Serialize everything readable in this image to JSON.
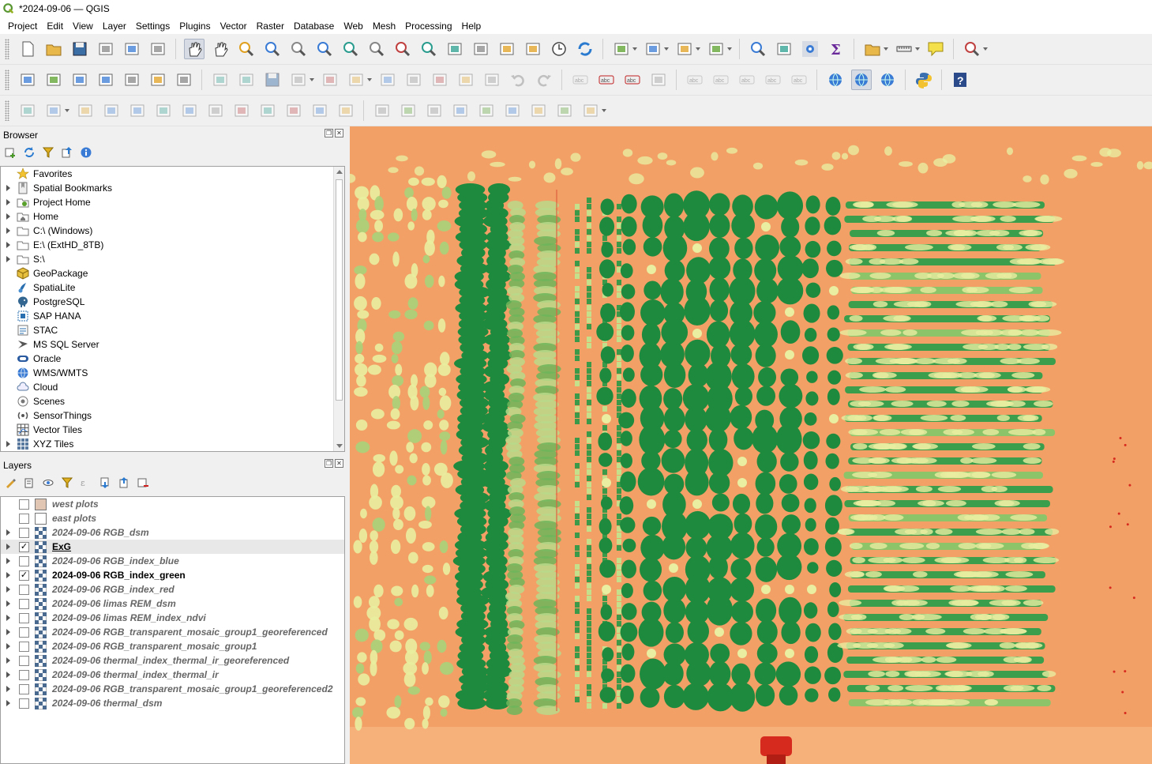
{
  "window": {
    "title": "*2024-09-06 — QGIS"
  },
  "menu": [
    "Project",
    "Edit",
    "View",
    "Layer",
    "Settings",
    "Plugins",
    "Vector",
    "Raster",
    "Database",
    "Web",
    "Mesh",
    "Processing",
    "Help"
  ],
  "browser": {
    "title": "Browser",
    "items": [
      {
        "label": "Favorites",
        "icon": "star-icon",
        "expandable": false
      },
      {
        "label": "Spatial Bookmarks",
        "icon": "bookmarks-icon",
        "expandable": true
      },
      {
        "label": "Project Home",
        "icon": "project-home-icon",
        "expandable": true
      },
      {
        "label": "Home",
        "icon": "home-icon",
        "expandable": true
      },
      {
        "label": "C:\\ (Windows)",
        "icon": "folder-icon",
        "expandable": true
      },
      {
        "label": "E:\\ (ExtHD_8TB)",
        "icon": "folder-icon",
        "expandable": true
      },
      {
        "label": "S:\\",
        "icon": "folder-icon",
        "expandable": true
      },
      {
        "label": "GeoPackage",
        "icon": "geopackage-icon",
        "expandable": false
      },
      {
        "label": "SpatiaLite",
        "icon": "spatialite-icon",
        "expandable": false
      },
      {
        "label": "PostgreSQL",
        "icon": "postgresql-icon",
        "expandable": false
      },
      {
        "label": "SAP HANA",
        "icon": "sap-hana-icon",
        "expandable": false
      },
      {
        "label": "STAC",
        "icon": "stac-icon",
        "expandable": false
      },
      {
        "label": "MS SQL Server",
        "icon": "mssql-icon",
        "expandable": false
      },
      {
        "label": "Oracle",
        "icon": "oracle-icon",
        "expandable": false
      },
      {
        "label": "WMS/WMTS",
        "icon": "wms-icon",
        "expandable": false
      },
      {
        "label": "Cloud",
        "icon": "cloud-icon",
        "expandable": false
      },
      {
        "label": "Scenes",
        "icon": "scenes-icon",
        "expandable": false
      },
      {
        "label": "SensorThings",
        "icon": "sensorthings-icon",
        "expandable": false
      },
      {
        "label": "Vector Tiles",
        "icon": "vector-tiles-icon",
        "expandable": false
      },
      {
        "label": "XYZ Tiles",
        "icon": "xyz-tiles-icon",
        "expandable": true
      }
    ]
  },
  "layers": {
    "title": "Layers",
    "items": [
      {
        "name": "west plots",
        "type": "vector",
        "swatch": "#e2c6b4",
        "checked": false,
        "expandable": false,
        "visible": false,
        "selected": false
      },
      {
        "name": "east plots",
        "type": "vector",
        "swatch": "#ffffff",
        "checked": false,
        "expandable": false,
        "visible": false,
        "selected": false
      },
      {
        "name": "2024-09-06 RGB_dsm",
        "type": "raster",
        "checked": false,
        "expandable": true,
        "visible": false,
        "selected": false
      },
      {
        "name": "ExG",
        "type": "raster",
        "checked": true,
        "expandable": true,
        "visible": true,
        "selected": true
      },
      {
        "name": "2024-09-06 RGB_index_blue",
        "type": "raster",
        "checked": false,
        "expandable": true,
        "visible": false,
        "selected": false
      },
      {
        "name": "2024-09-06 RGB_index_green",
        "type": "raster",
        "checked": true,
        "expandable": true,
        "visible": true,
        "selected": false
      },
      {
        "name": "2024-09-06 RGB_index_red",
        "type": "raster",
        "checked": false,
        "expandable": true,
        "visible": false,
        "selected": false
      },
      {
        "name": "2024-09-06 limas REM_dsm",
        "type": "raster",
        "checked": false,
        "expandable": true,
        "visible": false,
        "selected": false
      },
      {
        "name": "2024-09-06 limas REM_index_ndvi",
        "type": "raster",
        "checked": false,
        "expandable": true,
        "visible": false,
        "selected": false
      },
      {
        "name": "2024-09-06 RGB_transparent_mosaic_group1_georeferenced",
        "type": "raster",
        "checked": false,
        "expandable": true,
        "visible": false,
        "selected": false
      },
      {
        "name": "2024-09-06 RGB_transparent_mosaic_group1",
        "type": "raster",
        "checked": false,
        "expandable": true,
        "visible": false,
        "selected": false
      },
      {
        "name": "2024-09-06 thermal_index_thermal_ir_georeferenced",
        "type": "raster",
        "checked": false,
        "expandable": true,
        "visible": false,
        "selected": false
      },
      {
        "name": "2024-09-06 thermal_index_thermal_ir",
        "type": "raster",
        "checked": false,
        "expandable": true,
        "visible": false,
        "selected": false
      },
      {
        "name": "2024-09-06 RGB_transparent_mosaic_group1_georeferenced2",
        "type": "raster",
        "checked": false,
        "expandable": true,
        "visible": false,
        "selected": false
      },
      {
        "name": "2024-09-06 thermal_dsm",
        "type": "raster",
        "checked": false,
        "expandable": true,
        "visible": false,
        "selected": false
      }
    ]
  },
  "map": {
    "background": "#f29a5c",
    "vegetation_dark": "#1e8a3e",
    "vegetation_light": "#e9eea0",
    "hot_red": "#d62a1e"
  },
  "toolbars": {
    "row1": [
      "new-project-icon",
      "open-project-icon",
      "save-project-icon",
      "new-print-layout-icon",
      "show-layout-manager-icon",
      "style-manager-icon",
      "|",
      "pan-icon*",
      "pan-to-selection-icon",
      "zoom-in-icon",
      "zoom-out-icon",
      "zoom-full-icon",
      "zoom-to-selection-icon",
      "zoom-to-layer-icon",
      "zoom-native-icon",
      "zoom-last-icon",
      "zoom-next-icon",
      "new-map-view-icon",
      "new-3d-map-view-icon",
      "new-bookmark-icon",
      "show-bookmarks-icon",
      "temporal-controller-icon",
      "refresh-icon",
      "|",
      "select-features-icon v",
      "select-by-value-icon v",
      "deselect-icon v",
      "select-by-location-icon v",
      "|",
      "identify-icon",
      "attribute-table-icon",
      "processing-toolbox-icon",
      "statistics-icon",
      "|",
      "open-table-icon v",
      "measure-icon v",
      "annotation-icon",
      "|",
      "locator-icon v"
    ],
    "row2": [
      "data-source-manager-icon",
      "new-geopackage-icon",
      "new-shapefile-icon",
      "new-temporary-layer-icon",
      "add-wms-icon",
      "add-raster-icon",
      "add-mesh-icon",
      "|",
      "current-edits-icon",
      "toggle-editing-icon",
      "save-edits-icon",
      "digitize-icon v",
      "add-feature-icon",
      "vertex-tool-icon v",
      "modify-attributes-icon",
      "delete-selected-icon",
      "cut-features-icon",
      "copy-features-icon",
      "paste-features-icon",
      "undo-icon",
      "redo-icon",
      "|",
      "label-tool-icon",
      "label-pin-icon",
      "highlight-label-icon",
      "diagram-icon",
      "|",
      "label-move-icon",
      "label-show-icon",
      "label-rotate-icon",
      "label-change-icon",
      "label-properties-icon",
      "|",
      "qms-icon",
      "quickmapservices-icon*",
      "network-icon",
      "|",
      "python-icon",
      "|",
      "help-icon"
    ],
    "row3": [
      "digitize-shape-icon",
      "add-ring-icon v",
      "add-part-icon",
      "fill-ring-icon",
      "delete-ring-icon",
      "delete-part-icon",
      "reshape-icon",
      "offset-curve-icon",
      "split-features-icon",
      "split-parts-icon",
      "merge-features-icon",
      "merge-attributes-icon",
      "rotate-symbols-icon",
      "|",
      "simplify-icon",
      "buffer-icon",
      "rotate-icon",
      "scale-icon",
      "trim-icon",
      "reverse-icon",
      "align-icon",
      "cut-icon",
      "rotate-features-icon v"
    ]
  }
}
